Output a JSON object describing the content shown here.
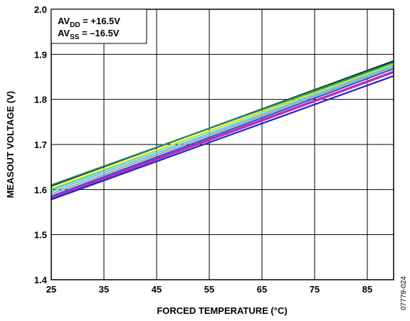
{
  "chart_data": {
    "type": "line",
    "title": "",
    "xlabel": "FORCED TEMPERATURE (°C)",
    "ylabel": "MEASOUT VOLTAGE (V)",
    "xlim": [
      25,
      90
    ],
    "ylim": [
      1.4,
      2.0
    ],
    "x_ticks": [
      "25",
      "35",
      "45",
      "55",
      "65",
      "75",
      "85"
    ],
    "y_ticks": [
      "1.4",
      "1.5",
      "1.6",
      "1.7",
      "1.8",
      "1.9",
      "2.0"
    ],
    "grid": true,
    "annotation": {
      "line1": {
        "main": "AV",
        "sub": "DD",
        "rest": " = +16.5V"
      },
      "line2": {
        "main": "AV",
        "sub": "SS",
        "rest": " = –16.5V"
      }
    },
    "figure_code": "07779-024",
    "series": [
      {
        "color": "#1a1a1a",
        "x": [
          25,
          90
        ],
        "y": [
          1.608,
          1.885
        ]
      },
      {
        "color": "#2a8a6a",
        "x": [
          25,
          90
        ],
        "y": [
          1.61,
          1.882
        ]
      },
      {
        "color": "#00b8c8",
        "x": [
          25,
          90
        ],
        "y": [
          1.6,
          1.88
        ]
      },
      {
        "color": "#d8e800",
        "x": [
          25,
          90
        ],
        "y": [
          1.602,
          1.878
        ]
      },
      {
        "color": "#58d0e8",
        "x": [
          25,
          90
        ],
        "y": [
          1.595,
          1.875
        ]
      },
      {
        "color": "#a8a8a8",
        "x": [
          25,
          90
        ],
        "y": [
          1.59,
          1.872
        ]
      },
      {
        "color": "#1a60c8",
        "x": [
          25,
          90
        ],
        "y": [
          1.585,
          1.868
        ]
      },
      {
        "color": "#8a3ab8",
        "x": [
          25,
          90
        ],
        "y": [
          1.583,
          1.862
        ]
      },
      {
        "color": "#e020b0",
        "x": [
          25,
          90
        ],
        "y": [
          1.58,
          1.86
        ]
      },
      {
        "color": "#2020e0",
        "x": [
          25,
          90
        ],
        "y": [
          1.578,
          1.852
        ]
      }
    ]
  }
}
